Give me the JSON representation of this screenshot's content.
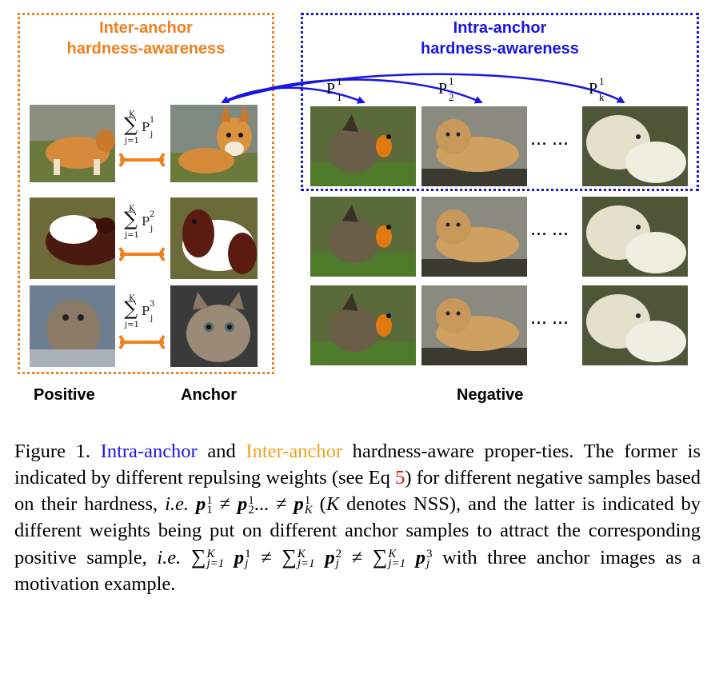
{
  "figure": {
    "inter_title_line1": "Inter-anchor",
    "inter_title_line2": "hardness-awareness",
    "intra_title_line1": "Intra-anchor",
    "intra_title_line2": "hardness-awareness",
    "col_positive": "Positive",
    "col_anchor": "Anchor",
    "col_negative": "Negative",
    "sum_rows": [
      {
        "K": "K",
        "sigma": "∑",
        "j": "j=1",
        "P": "P",
        "sup": "1",
        "sub": "j"
      },
      {
        "K": "K",
        "sigma": "∑",
        "j": "j=1",
        "P": "P",
        "sup": "2",
        "sub": "j"
      },
      {
        "K": "K",
        "sigma": "∑",
        "j": "j=1",
        "P": "P",
        "sup": "3",
        "sub": "j"
      }
    ],
    "p_labels": [
      {
        "P": "P",
        "sup": "1",
        "sub": "1"
      },
      {
        "P": "P",
        "sup": "1",
        "sub": "2"
      },
      {
        "P": "P",
        "sup": "1",
        "sub": "k"
      }
    ],
    "dots": "··· ···",
    "colors": {
      "inter": "#f07f1c",
      "intra": "#1a14e6",
      "connector": "#f07f1c",
      "arrow": "#1a14e6"
    }
  },
  "caption": {
    "fig_label": "Figure 1.",
    "intra": "Intra-anchor",
    "and": "and",
    "inter": "Inter-anchor",
    "text1": "hardness-aware proper-ties. The former is indicated by different repulsing weights (see Eq",
    "eq_ref": "5",
    "text2": ") for different negative samples based on their hardness,",
    "ie1": "i.e.",
    "p1": "p",
    "neq": "≠",
    "p2": "p",
    "ell": "...",
    "pK": "p",
    "sup1": "1",
    "sub1": "1",
    "sub2": "2",
    "subK": "K",
    "K_paren_open": "(",
    "K": "K",
    "text3": "denotes NSS), and the latter is indicated by different weights being put on different anchor samples to attract the corresponding positive sample,",
    "ie2": "i.e.",
    "sum": "∑",
    "sumK": "K",
    "sumj": "j=1",
    "pj": "p",
    "subj": "j",
    "s1": "1",
    "s2": "2",
    "s3": "3",
    "text4": "with three anchor images as a motivation example."
  }
}
